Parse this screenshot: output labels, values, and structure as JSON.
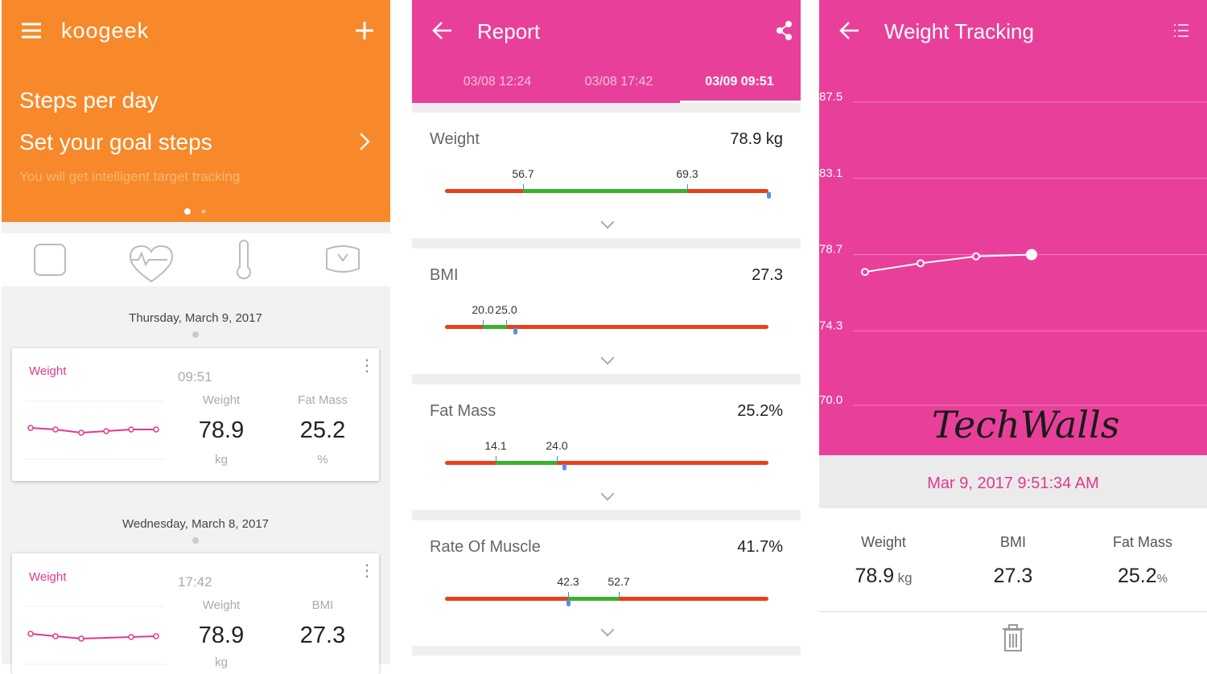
{
  "home": {
    "brand": "koogeek",
    "banner": {
      "title": "Steps per day",
      "subtitle": "Set your goal steps",
      "hint": "You will get intelligent target tracking"
    },
    "days": [
      {
        "date": "Thursday, March 9, 2017",
        "card": {
          "title": "Weight",
          "time": "09:51",
          "stats": [
            {
              "label": "Weight",
              "value": "78.9",
              "unit": "kg"
            },
            {
              "label": "Fat Mass",
              "value": "25.2",
              "unit": "%"
            }
          ]
        }
      },
      {
        "date": "Wednesday, March 8, 2017",
        "card": {
          "title": "Weight",
          "time": "17:42",
          "stats": [
            {
              "label": "Weight",
              "value": "78.9",
              "unit": "kg"
            },
            {
              "label": "BMI",
              "value": "27.3"
            }
          ]
        }
      }
    ]
  },
  "report": {
    "title": "Report",
    "tabs": [
      "03/08 12:24",
      "03/08 17:42",
      "03/09 09:51"
    ],
    "metrics": [
      {
        "name": "Weight",
        "value": "78.9 kg",
        "low": "56.7",
        "high": "69.3"
      },
      {
        "name": "BMI",
        "value": "27.3",
        "low": "20.0",
        "high": "25.0"
      },
      {
        "name": "Fat Mass",
        "value": "25.2%",
        "low": "14.1",
        "high": "24.0"
      },
      {
        "name": "Rate Of Muscle",
        "value": "41.7%",
        "low": "42.3",
        "high": "52.7"
      }
    ]
  },
  "tracking": {
    "title": "Weight Tracking",
    "watermark": "TechWalls",
    "chart": {
      "type": "line",
      "color": "#ffffff",
      "values": [
        77.7,
        78.2,
        78.6,
        78.7
      ],
      "ylim": [
        70,
        87.5
      ],
      "yticks": [
        {
          "value": 70,
          "label": "70.0"
        },
        74.3,
        78.7,
        83.1,
        87.5
      ],
      "grid": true
    },
    "timestamp": "Mar 9, 2017 9:51:34 AM",
    "stats": [
      {
        "label": "Weight",
        "value": "78.9",
        "unit": "kg"
      },
      {
        "label": "BMI",
        "value": "27.3"
      },
      {
        "label": "Fat Mass",
        "value": "25.2",
        "unit": "%"
      }
    ]
  }
}
